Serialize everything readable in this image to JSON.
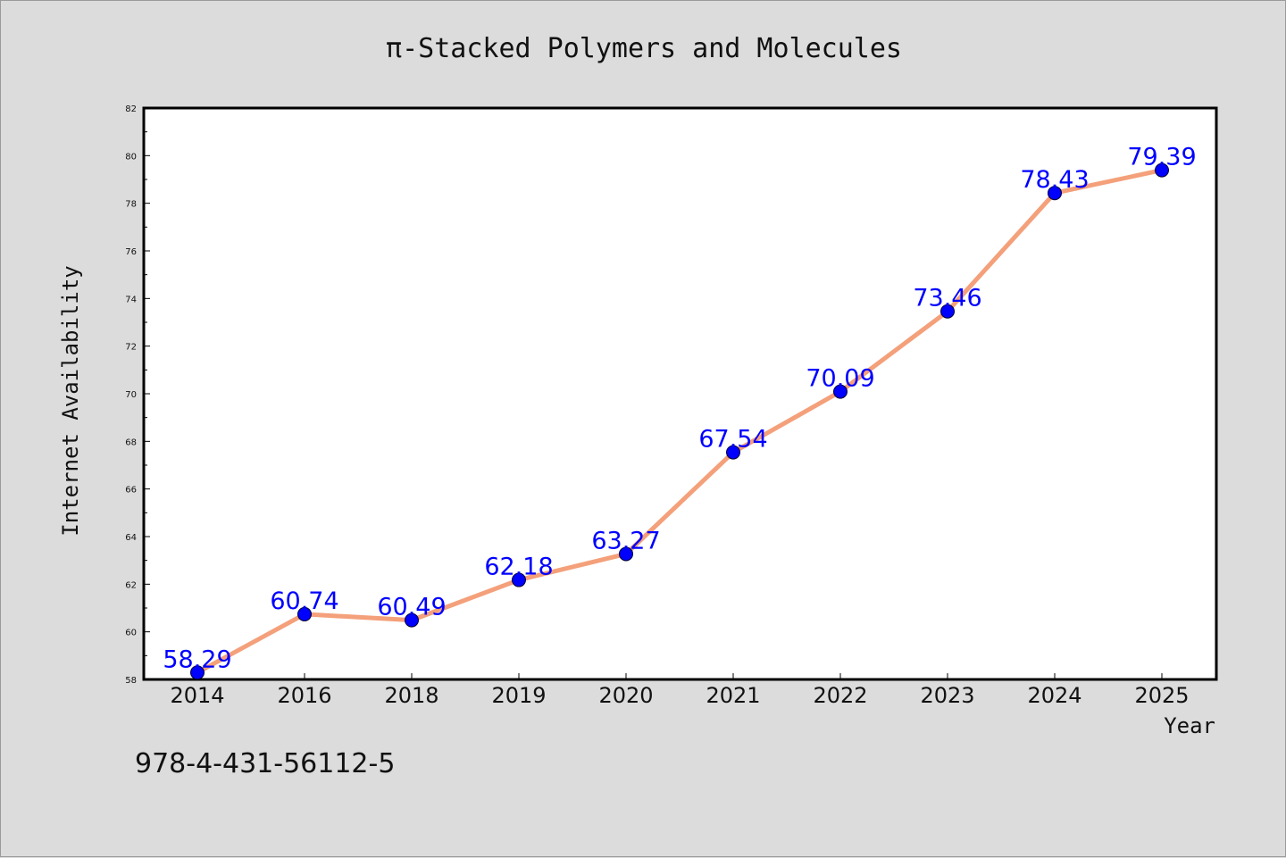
{
  "chart_data": {
    "type": "line",
    "title": "π-Stacked Polymers and Molecules",
    "xlabel": "Year",
    "ylabel": "Internet Availability",
    "categories": [
      "2014",
      "2016",
      "2018",
      "2019",
      "2020",
      "2021",
      "2022",
      "2023",
      "2024",
      "2025"
    ],
    "values": [
      58.29,
      60.74,
      60.49,
      62.18,
      63.27,
      67.54,
      70.09,
      73.46,
      78.43,
      79.39
    ],
    "data_labels": [
      "58.29",
      "60.74",
      "60.49",
      "62.18",
      "63.27",
      "67.54",
      "70.09",
      "73.46",
      "78.43",
      "79.39"
    ],
    "ylim": [
      58,
      82
    ],
    "yticks": [
      58,
      60,
      62,
      64,
      66,
      68,
      70,
      72,
      74,
      76,
      78,
      80,
      82
    ],
    "grid": false,
    "line_color": "#f4a07a",
    "marker_color": "#0000ff",
    "label_color": "#0000ff",
    "background_color": "#dcdcdc",
    "plot_background": "#ffffff"
  },
  "footer": {
    "isbn": "978-4-431-56112-5"
  }
}
